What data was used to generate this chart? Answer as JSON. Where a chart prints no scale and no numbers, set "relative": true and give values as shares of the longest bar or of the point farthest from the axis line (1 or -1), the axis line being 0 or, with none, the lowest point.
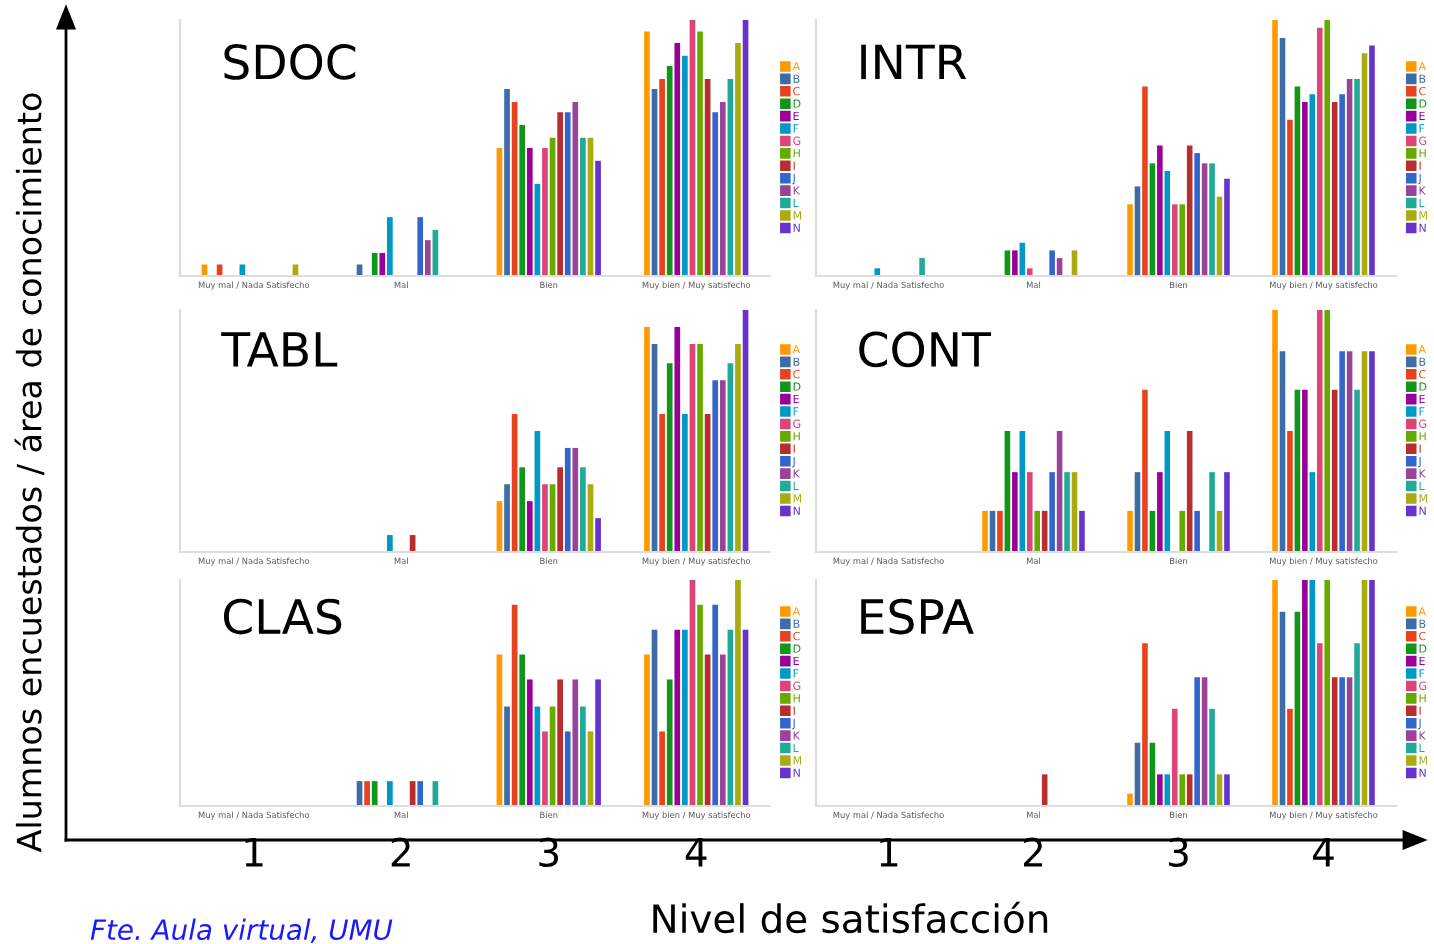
{
  "chart_data": [
    {
      "type": "bar",
      "title": "SDOC",
      "relative": true,
      "legend": "right",
      "grid": false,
      "ylabel": "Alumnos encuestados / área de conocimiento",
      "xlabel": "Nivel de satisfacción",
      "categories": [
        "Muy mal / Nada Satisfecho",
        "Mal",
        "Bien",
        "Muy bien / Muy satisfecho"
      ],
      "series": [
        {
          "name": "A",
          "color": "#ff9900",
          "values": [
            0.045,
            0,
            0.5,
            0.955
          ]
        },
        {
          "name": "B",
          "color": "#3d6ca6",
          "values": [
            0,
            0.045,
            0.73,
            0.73
          ]
        },
        {
          "name": "C",
          "color": "#e8431f",
          "values": [
            0.045,
            0,
            0.68,
            0.77
          ]
        },
        {
          "name": "D",
          "color": "#109618",
          "values": [
            0,
            0.09,
            0.59,
            0.82
          ]
        },
        {
          "name": "E",
          "color": "#990099",
          "values": [
            0,
            0.09,
            0.5,
            0.91
          ]
        },
        {
          "name": "F",
          "color": "#0099c6",
          "values": [
            0.045,
            0.23,
            0.36,
            0.86
          ]
        },
        {
          "name": "G",
          "color": "#dd4477",
          "values": [
            0,
            0,
            0.5,
            1
          ]
        },
        {
          "name": "H",
          "color": "#66aa00",
          "values": [
            0,
            0,
            0.54,
            0.955
          ]
        },
        {
          "name": "I",
          "color": "#b82e2e",
          "values": [
            0,
            0,
            0.64,
            0.77
          ]
        },
        {
          "name": "J",
          "color": "#3366cc",
          "values": [
            0,
            0.23,
            0.64,
            0.64
          ]
        },
        {
          "name": "K",
          "color": "#994499",
          "values": [
            0,
            0.14,
            0.68,
            0.68
          ]
        },
        {
          "name": "L",
          "color": "#22aa99",
          "values": [
            0,
            0.18,
            0.54,
            0.77
          ]
        },
        {
          "name": "M",
          "color": "#aaaa11",
          "values": [
            0.045,
            0,
            0.54,
            0.91
          ]
        },
        {
          "name": "N",
          "color": "#6633cc",
          "values": [
            0,
            0,
            0.45,
            1
          ]
        }
      ]
    },
    {
      "type": "bar",
      "title": "INTR",
      "relative": true,
      "legend": "right",
      "grid": false,
      "categories": [
        "Muy mal / Nada Satisfecho",
        "Mal",
        "Bien",
        "Muy bien / Muy satisfecho"
      ],
      "series": [
        {
          "name": "A",
          "color": "#ff9900",
          "values": [
            0,
            0,
            0.28,
            1
          ]
        },
        {
          "name": "B",
          "color": "#3d6ca6",
          "values": [
            0,
            0,
            0.35,
            0.93
          ]
        },
        {
          "name": "C",
          "color": "#e8431f",
          "values": [
            0,
            0,
            0.74,
            0.61
          ]
        },
        {
          "name": "D",
          "color": "#109618",
          "values": [
            0,
            0.1,
            0.44,
            0.74
          ]
        },
        {
          "name": "E",
          "color": "#990099",
          "values": [
            0,
            0.1,
            0.51,
            0.68
          ]
        },
        {
          "name": "F",
          "color": "#0099c6",
          "values": [
            0.03,
            0.13,
            0.41,
            0.71
          ]
        },
        {
          "name": "G",
          "color": "#dd4477",
          "values": [
            0,
            0.03,
            0.28,
            0.97
          ]
        },
        {
          "name": "H",
          "color": "#66aa00",
          "values": [
            0,
            0,
            0.28,
            1
          ]
        },
        {
          "name": "I",
          "color": "#b82e2e",
          "values": [
            0,
            0,
            0.51,
            0.68
          ]
        },
        {
          "name": "J",
          "color": "#3366cc",
          "values": [
            0,
            0.1,
            0.48,
            0.71
          ]
        },
        {
          "name": "K",
          "color": "#994499",
          "values": [
            0,
            0.07,
            0.44,
            0.77
          ]
        },
        {
          "name": "L",
          "color": "#22aa99",
          "values": [
            0.07,
            0,
            0.44,
            0.77
          ]
        },
        {
          "name": "M",
          "color": "#aaaa11",
          "values": [
            0,
            0.1,
            0.31,
            0.87
          ]
        },
        {
          "name": "N",
          "color": "#6633cc",
          "values": [
            0,
            0,
            0.38,
            0.9
          ]
        }
      ]
    },
    {
      "type": "bar",
      "title": "TABL",
      "relative": true,
      "legend": "right",
      "grid": false,
      "categories": [
        "Muy mal / Nada Satisfecho",
        "Mal",
        "Bien",
        "Muy bien / Muy satisfecho"
      ],
      "series": [
        {
          "name": "A",
          "color": "#ff9900",
          "values": [
            0,
            0,
            0.21,
            0.93
          ]
        },
        {
          "name": "B",
          "color": "#3d6ca6",
          "values": [
            0,
            0,
            0.28,
            0.86
          ]
        },
        {
          "name": "C",
          "color": "#e8431f",
          "values": [
            0,
            0,
            0.57,
            0.57
          ]
        },
        {
          "name": "D",
          "color": "#109618",
          "values": [
            0,
            0,
            0.35,
            0.78
          ]
        },
        {
          "name": "E",
          "color": "#990099",
          "values": [
            0,
            0,
            0.21,
            0.93
          ]
        },
        {
          "name": "F",
          "color": "#0099c6",
          "values": [
            0,
            0.07,
            0.5,
            0.57
          ]
        },
        {
          "name": "G",
          "color": "#dd4477",
          "values": [
            0,
            0,
            0.28,
            0.86
          ]
        },
        {
          "name": "H",
          "color": "#66aa00",
          "values": [
            0,
            0,
            0.28,
            0.86
          ]
        },
        {
          "name": "I",
          "color": "#b82e2e",
          "values": [
            0,
            0.07,
            0.35,
            0.57
          ]
        },
        {
          "name": "J",
          "color": "#3366cc",
          "values": [
            0,
            0,
            0.43,
            0.71
          ]
        },
        {
          "name": "K",
          "color": "#994499",
          "values": [
            0,
            0,
            0.43,
            0.71
          ]
        },
        {
          "name": "L",
          "color": "#22aa99",
          "values": [
            0,
            0,
            0.35,
            0.78
          ]
        },
        {
          "name": "M",
          "color": "#aaaa11",
          "values": [
            0,
            0,
            0.28,
            0.86
          ]
        },
        {
          "name": "N",
          "color": "#6633cc",
          "values": [
            0,
            0,
            0.14,
            1
          ]
        }
      ]
    },
    {
      "type": "bar",
      "title": "CONT",
      "relative": true,
      "legend": "right",
      "grid": false,
      "categories": [
        "Muy mal / Nada Satisfecho",
        "Mal",
        "Bien",
        "Muy bien / Muy satisfecho"
      ],
      "series": [
        {
          "name": "A",
          "color": "#ff9900",
          "values": [
            0,
            0.17,
            0.17,
            1
          ]
        },
        {
          "name": "B",
          "color": "#3d6ca6",
          "values": [
            0,
            0.17,
            0.33,
            0.83
          ]
        },
        {
          "name": "C",
          "color": "#e8431f",
          "values": [
            0,
            0.17,
            0.67,
            0.5
          ]
        },
        {
          "name": "D",
          "color": "#109618",
          "values": [
            0,
            0.5,
            0.17,
            0.67
          ]
        },
        {
          "name": "E",
          "color": "#990099",
          "values": [
            0,
            0.33,
            0.33,
            0.67
          ]
        },
        {
          "name": "F",
          "color": "#0099c6",
          "values": [
            0,
            0.5,
            0.5,
            0.33
          ]
        },
        {
          "name": "G",
          "color": "#dd4477",
          "values": [
            0,
            0.33,
            0,
            1
          ]
        },
        {
          "name": "H",
          "color": "#66aa00",
          "values": [
            0,
            0.17,
            0.17,
            1
          ]
        },
        {
          "name": "I",
          "color": "#b82e2e",
          "values": [
            0,
            0.17,
            0.5,
            0.67
          ]
        },
        {
          "name": "J",
          "color": "#3366cc",
          "values": [
            0,
            0.33,
            0.17,
            0.83
          ]
        },
        {
          "name": "K",
          "color": "#994499",
          "values": [
            0,
            0.5,
            0,
            0.83
          ]
        },
        {
          "name": "L",
          "color": "#22aa99",
          "values": [
            0,
            0.33,
            0.33,
            0.67
          ]
        },
        {
          "name": "M",
          "color": "#aaaa11",
          "values": [
            0,
            0.33,
            0.17,
            0.83
          ]
        },
        {
          "name": "N",
          "color": "#6633cc",
          "values": [
            0,
            0.17,
            0.33,
            0.83
          ]
        }
      ]
    },
    {
      "type": "bar",
      "title": "CLAS",
      "relative": true,
      "legend": "right",
      "grid": false,
      "annotations": [
        "1",
        "2",
        "3",
        "4",
        "Fte. Aula virtual, UMU"
      ],
      "categories": [
        "Muy mal / Nada Satisfecho",
        "Mal",
        "Bien",
        "Muy bien / Muy satisfecho"
      ],
      "series": [
        {
          "name": "A",
          "color": "#ff9900",
          "values": [
            0,
            0,
            0.67,
            0.67
          ]
        },
        {
          "name": "B",
          "color": "#3d6ca6",
          "values": [
            0,
            0.11,
            0.44,
            0.78
          ]
        },
        {
          "name": "C",
          "color": "#e8431f",
          "values": [
            0,
            0.11,
            0.89,
            0.33
          ]
        },
        {
          "name": "D",
          "color": "#109618",
          "values": [
            0,
            0.11,
            0.67,
            0.56
          ]
        },
        {
          "name": "E",
          "color": "#990099",
          "values": [
            0,
            0,
            0.56,
            0.78
          ]
        },
        {
          "name": "F",
          "color": "#0099c6",
          "values": [
            0,
            0.11,
            0.44,
            0.78
          ]
        },
        {
          "name": "G",
          "color": "#dd4477",
          "values": [
            0,
            0,
            0.33,
            1
          ]
        },
        {
          "name": "H",
          "color": "#66aa00",
          "values": [
            0,
            0,
            0.44,
            0.89
          ]
        },
        {
          "name": "I",
          "color": "#b82e2e",
          "values": [
            0,
            0.11,
            0.56,
            0.67
          ]
        },
        {
          "name": "J",
          "color": "#3366cc",
          "values": [
            0,
            0.11,
            0.33,
            0.89
          ]
        },
        {
          "name": "K",
          "color": "#994499",
          "values": [
            0,
            0,
            0.56,
            0.67
          ]
        },
        {
          "name": "L",
          "color": "#22aa99",
          "values": [
            0,
            0.11,
            0.44,
            0.78
          ]
        },
        {
          "name": "M",
          "color": "#aaaa11",
          "values": [
            0,
            0,
            0.33,
            1
          ]
        },
        {
          "name": "N",
          "color": "#6633cc",
          "values": [
            0,
            0,
            0.56,
            0.78
          ]
        }
      ]
    },
    {
      "type": "bar",
      "title": "ESPA",
      "relative": true,
      "legend": "right",
      "grid": false,
      "annotations": [
        "1",
        "2",
        "3",
        "4"
      ],
      "categories": [
        "Muy mal / Nada Satisfecho",
        "Mal",
        "Bien",
        "Muy bien / Muy satisfecho"
      ],
      "series": [
        {
          "name": "A",
          "color": "#ff9900",
          "values": [
            0,
            0,
            0.055,
            1
          ]
        },
        {
          "name": "B",
          "color": "#3d6ca6",
          "values": [
            0,
            0,
            0.28,
            0.86
          ]
        },
        {
          "name": "C",
          "color": "#e8431f",
          "values": [
            0,
            0,
            0.72,
            0.43
          ]
        },
        {
          "name": "D",
          "color": "#109618",
          "values": [
            0,
            0,
            0.28,
            0.86
          ]
        },
        {
          "name": "E",
          "color": "#990099",
          "values": [
            0,
            0,
            0.14,
            1
          ]
        },
        {
          "name": "F",
          "color": "#0099c6",
          "values": [
            0,
            0,
            0.14,
            1
          ]
        },
        {
          "name": "G",
          "color": "#dd4477",
          "values": [
            0,
            0,
            0.43,
            0.72
          ]
        },
        {
          "name": "H",
          "color": "#66aa00",
          "values": [
            0,
            0,
            0.14,
            1
          ]
        },
        {
          "name": "I",
          "color": "#b82e2e",
          "values": [
            0,
            0.14,
            0.14,
            0.57
          ]
        },
        {
          "name": "J",
          "color": "#3366cc",
          "values": [
            0,
            0,
            0.57,
            0.57
          ]
        },
        {
          "name": "K",
          "color": "#994499",
          "values": [
            0,
            0,
            0.57,
            0.57
          ]
        },
        {
          "name": "L",
          "color": "#22aa99",
          "values": [
            0,
            0,
            0.43,
            0.72
          ]
        },
        {
          "name": "M",
          "color": "#aaaa11",
          "values": [
            0,
            0,
            0.14,
            1
          ]
        },
        {
          "name": "N",
          "color": "#6633cc",
          "values": [
            0,
            0,
            0.14,
            1
          ]
        }
      ]
    }
  ]
}
